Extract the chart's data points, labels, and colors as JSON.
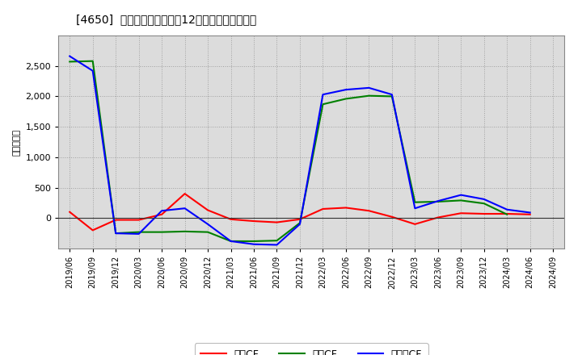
{
  "title": "[4650]  キャッシュフローの12か月移動合計の推移",
  "ylabel": "（百万円）",
  "background_color": "#ffffff",
  "plot_background": "#dcdcdc",
  "grid_color": "#999999",
  "x_labels": [
    "2019/06",
    "2019/09",
    "2019/12",
    "2020/03",
    "2020/06",
    "2020/09",
    "2020/12",
    "2021/03",
    "2021/06",
    "2021/09",
    "2021/12",
    "2022/03",
    "2022/06",
    "2022/09",
    "2022/12",
    "2023/03",
    "2023/06",
    "2023/09",
    "2023/12",
    "2024/03",
    "2024/06",
    "2024/09"
  ],
  "operating_cf": [
    100,
    -200,
    -30,
    -30,
    60,
    400,
    130,
    -20,
    -50,
    -70,
    -20,
    150,
    170,
    120,
    20,
    -100,
    10,
    80,
    70,
    70,
    60,
    null
  ],
  "investing_cf": [
    2570,
    2580,
    -250,
    -230,
    -230,
    -220,
    -230,
    -380,
    -380,
    -370,
    -80,
    1870,
    1960,
    2010,
    2000,
    260,
    270,
    290,
    240,
    60,
    null,
    null
  ],
  "free_cf": [
    2660,
    2420,
    -250,
    -260,
    120,
    160,
    -100,
    -380,
    -430,
    -440,
    -100,
    2030,
    2110,
    2140,
    2030,
    160,
    280,
    380,
    310,
    140,
    90,
    null
  ],
  "operating_color": "#ff0000",
  "investing_color": "#008000",
  "free_color": "#0000ff",
  "ylim_min": -500,
  "ylim_max": 3000,
  "yticks": [
    0,
    500,
    1000,
    1500,
    2000,
    2500
  ],
  "legend_labels": [
    "営業CF",
    "投資CF",
    "フリーCF"
  ]
}
